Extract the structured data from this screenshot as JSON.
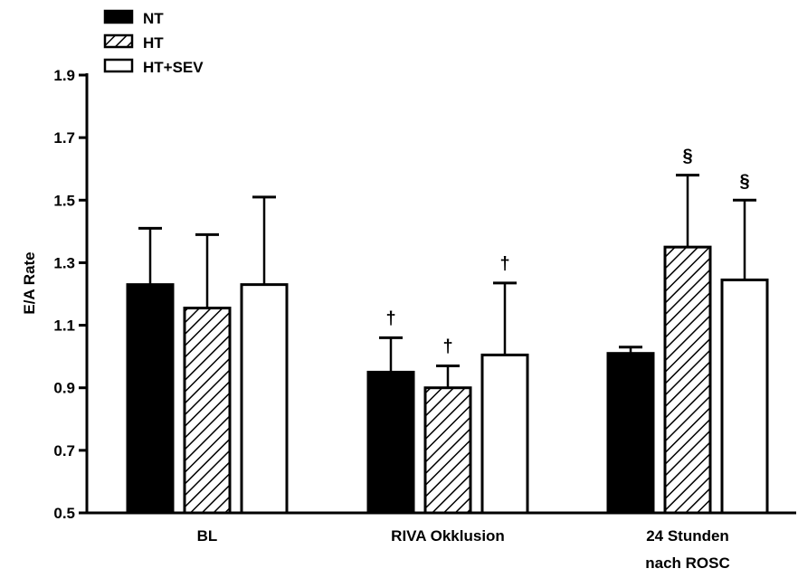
{
  "chart_data": {
    "type": "bar",
    "title": "",
    "xlabel": "",
    "ylabel": "E/A Rate",
    "ylim": [
      0.5,
      1.9
    ],
    "yticks": [
      "0.5",
      "0.7",
      "0.9",
      "1.1",
      "1.3",
      "1.5",
      "1.7",
      "1.9"
    ],
    "categories": [
      [
        "BL"
      ],
      [
        "RIVA Okklusion"
      ],
      [
        "24 Stunden",
        "nach ROSC"
      ]
    ],
    "series": [
      {
        "name": "NT",
        "fill": "solid-black",
        "values": [
          1.23,
          0.95,
          1.01
        ],
        "errors": [
          0.18,
          0.11,
          0.02
        ],
        "markers": [
          "",
          "†",
          ""
        ]
      },
      {
        "name": "HT",
        "fill": "hatched",
        "values": [
          1.155,
          0.9,
          1.35
        ],
        "errors": [
          0.235,
          0.07,
          0.23
        ],
        "markers": [
          "",
          "†",
          "§"
        ]
      },
      {
        "name": "HT+SEV",
        "fill": "white",
        "values": [
          1.23,
          1.005,
          1.245
        ],
        "errors": [
          0.28,
          0.23,
          0.255
        ],
        "markers": [
          "",
          "†",
          "§"
        ]
      }
    ],
    "grid": false,
    "legend": "top-left"
  },
  "colors": {
    "ink": "#000000",
    "background": "#ffffff"
  }
}
